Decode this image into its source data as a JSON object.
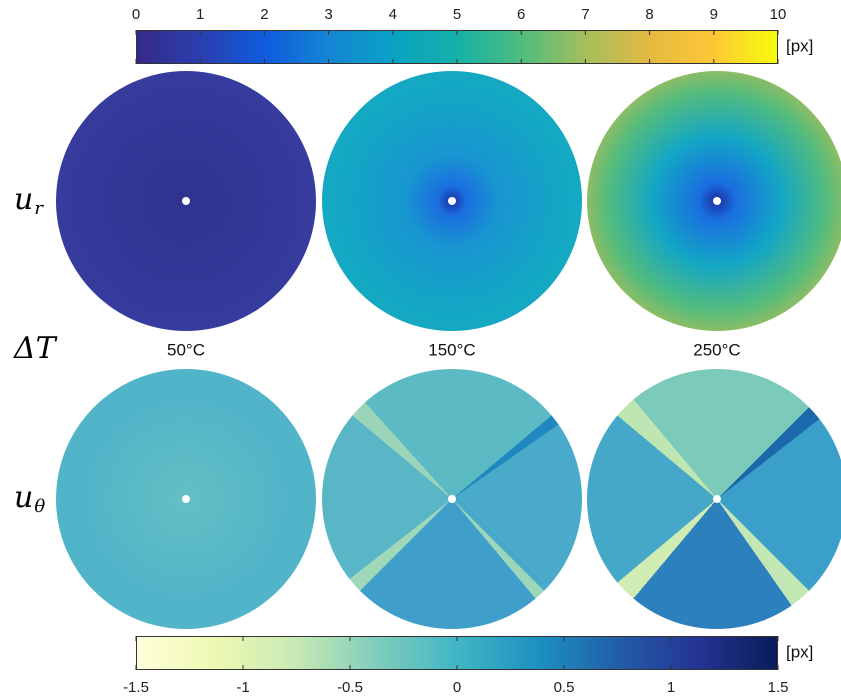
{
  "colorbars": [
    {
      "lim": [
        0,
        10
      ],
      "ticks": [
        0,
        1,
        2,
        3,
        4,
        5,
        6,
        7,
        8,
        9,
        10
      ],
      "unit": "[px]"
    },
    {
      "lim": [
        -1.5,
        1.5
      ],
      "ticks": [
        -1.5,
        -1,
        -0.5,
        0,
        0.5,
        1,
        1.5
      ],
      "unit": "[px]"
    }
  ],
  "row_labels": [
    {
      "symbol": "u",
      "subscript": "r"
    },
    {
      "symbol": "ΔT"
    },
    {
      "symbol": "u",
      "subscript": "θ"
    }
  ],
  "column_labels": [
    "50°C",
    "150°C",
    "250°C"
  ]
}
